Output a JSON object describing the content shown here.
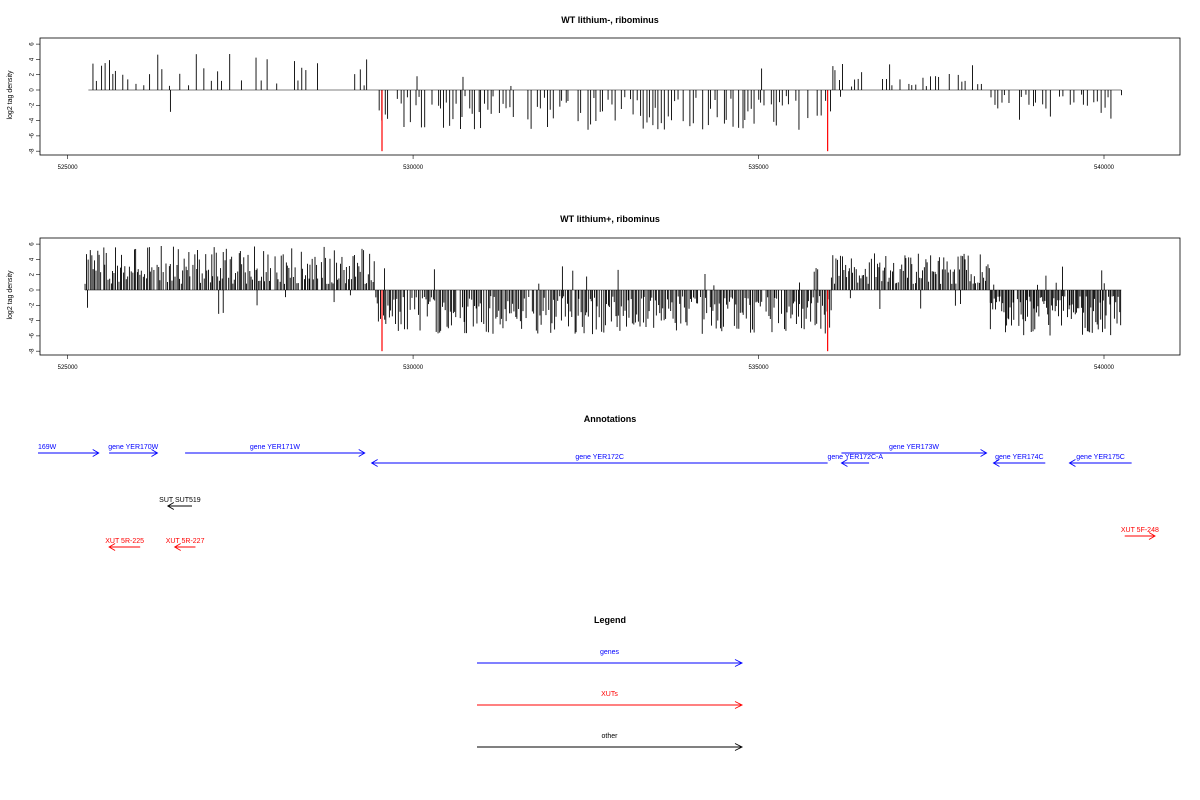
{
  "chart_data": [
    {
      "type": "bar",
      "title": "WT lithium-, ribominus",
      "ylabel": "log2 tag density",
      "xlim": [
        524600,
        541100
      ],
      "ylim": [
        -8.5,
        6.8
      ],
      "xticks": [
        525000,
        530000,
        535000,
        540000
      ],
      "yticks": [
        6,
        4,
        2,
        0,
        -2,
        -4,
        -6,
        -8
      ],
      "segments": [
        {
          "from": 525300,
          "to": 529400,
          "sign": 1,
          "min": 0.5,
          "max": 4.8,
          "step": 55,
          "fill": 0.6
        },
        {
          "from": 529400,
          "to": 536050,
          "sign": -1,
          "min": 0.8,
          "max": 5.2,
          "step": 45,
          "fill": 0.78
        },
        {
          "from": 536050,
          "to": 538350,
          "sign": 1,
          "min": 0.4,
          "max": 3.4,
          "step": 55,
          "fill": 0.6
        },
        {
          "from": 538350,
          "to": 540250,
          "sign": -1,
          "min": 0.6,
          "max": 4.0,
          "step": 50,
          "fill": 0.68
        }
      ],
      "highlights": [
        {
          "x": 529550,
          "y": -8,
          "color": "#ff0000"
        },
        {
          "x": 536000,
          "y": -8,
          "color": "#ff0000"
        }
      ]
    },
    {
      "type": "bar",
      "title": "WT lithium+, ribominus",
      "ylabel": "log2 tag density",
      "xlim": [
        524600,
        541100
      ],
      "ylim": [
        -8.5,
        6.8
      ],
      "xticks": [
        525000,
        530000,
        535000,
        540000
      ],
      "yticks": [
        6,
        4,
        2,
        0,
        -2,
        -4,
        -6,
        -8
      ],
      "segments": [
        {
          "from": 525250,
          "to": 529450,
          "sign": 1,
          "min": 0.8,
          "max": 5.8,
          "step": 22,
          "fill": 0.95
        },
        {
          "from": 529450,
          "to": 536050,
          "sign": -1,
          "min": 0.8,
          "max": 5.8,
          "step": 22,
          "fill": 0.95
        },
        {
          "from": 536050,
          "to": 538350,
          "sign": 1,
          "min": 0.8,
          "max": 4.8,
          "step": 22,
          "fill": 0.95
        },
        {
          "from": 538350,
          "to": 540250,
          "sign": -1,
          "min": 0.8,
          "max": 6.0,
          "step": 18,
          "fill": 0.97
        }
      ],
      "highlights": [
        {
          "x": 529550,
          "y": -8,
          "color": "#ff0000"
        },
        {
          "x": 536000,
          "y": -8,
          "color": "#ff0000"
        }
      ]
    }
  ],
  "annotations": {
    "title": "Annotations",
    "items": [
      {
        "label": "169W",
        "color": "#0000ff",
        "x1": 524350,
        "x2": 525450,
        "dir": "right",
        "row": 0
      },
      {
        "label": "gene YER170W",
        "color": "#0000ff",
        "x1": 525600,
        "x2": 526300,
        "dir": "right",
        "row": 0
      },
      {
        "label": "gene YER171W",
        "color": "#0000ff",
        "x1": 526700,
        "x2": 529300,
        "dir": "right",
        "row": 0
      },
      {
        "label": "gene YER172C",
        "color": "#0000ff",
        "x1": 529400,
        "x2": 536000,
        "dir": "left",
        "row": 1
      },
      {
        "label": "gene YER172C-A",
        "color": "#0000ff",
        "x1": 536200,
        "x2": 536600,
        "dir": "left",
        "row": 1
      },
      {
        "label": "gene YER173W",
        "color": "#0000ff",
        "x1": 536200,
        "x2": 538300,
        "dir": "right",
        "row": 0
      },
      {
        "label": "gene YER174C",
        "color": "#0000ff",
        "x1": 538400,
        "x2": 539150,
        "dir": "left",
        "row": 1
      },
      {
        "label": "gene YER175C",
        "color": "#0000ff",
        "x1": 539500,
        "x2": 540400,
        "dir": "left",
        "row": 1
      },
      {
        "label": "SUT SUT519",
        "color": "#000000",
        "x1": 526450,
        "x2": 526800,
        "dir": "left",
        "row": 2
      },
      {
        "label": "XUT 5R-225",
        "color": "#ff0000",
        "x1": 525600,
        "x2": 526050,
        "dir": "left",
        "row": 3
      },
      {
        "label": "XUT 5R-227",
        "color": "#ff0000",
        "x1": 526550,
        "x2": 526850,
        "dir": "left",
        "row": 3
      },
      {
        "label": "XUT 5F-248",
        "color": "#ff0000",
        "x1": 540300,
        "x2": 541000,
        "dir": "right",
        "row": 4
      }
    ]
  },
  "legend": {
    "title": "Legend",
    "items": [
      {
        "label": "genes",
        "color": "#0000ff"
      },
      {
        "label": "XUTs",
        "color": "#ff0000"
      },
      {
        "label": "other",
        "color": "#000000"
      }
    ]
  }
}
